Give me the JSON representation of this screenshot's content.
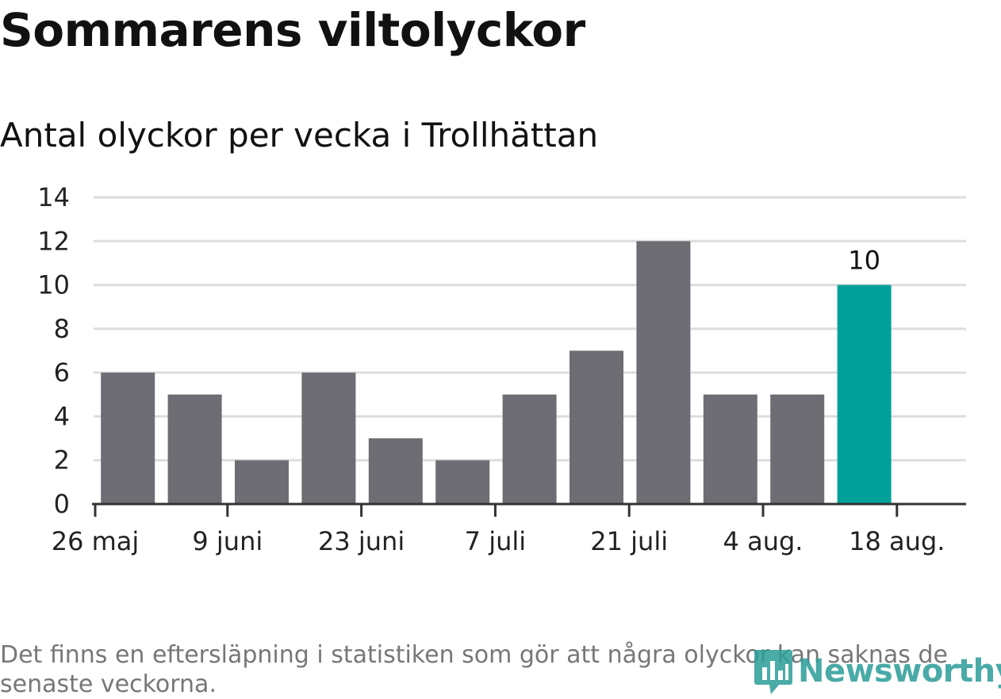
{
  "title": "Sommarens viltolyckor",
  "subtitle": "Antal olyckor per vecka i Trollhättan",
  "footnote": "Det finns en eftersläpning i statistiken som gör att några olyckor kan saknas de senaste veckorna.",
  "logo": {
    "text": "Newsworthy",
    "icon": "bar-chart-pin-icon"
  },
  "colors": {
    "bar": "#6e6d73",
    "highlight": "#00a19a",
    "grid": "#dddddd",
    "axis": "#333333",
    "logo": "#2a9c98"
  },
  "chart_data": {
    "type": "bar",
    "title": "Sommarens viltolyckor",
    "subtitle": "Antal olyckor per vecka i Trollhättan",
    "xlabel": "",
    "ylabel": "",
    "ylim": [
      0,
      14
    ],
    "yticks": [
      0,
      2,
      4,
      6,
      8,
      10,
      12,
      14
    ],
    "grid": true,
    "x_tick_labels": [
      "26 maj",
      "9 juni",
      "23 juni",
      "7 juli",
      "21 juli",
      "4 aug.",
      "18 aug."
    ],
    "values": [
      6,
      5,
      2,
      6,
      3,
      2,
      5,
      7,
      12,
      5,
      5,
      10
    ],
    "highlight_index": 11,
    "data_labels": [
      {
        "index": 11,
        "text": "10"
      }
    ]
  }
}
